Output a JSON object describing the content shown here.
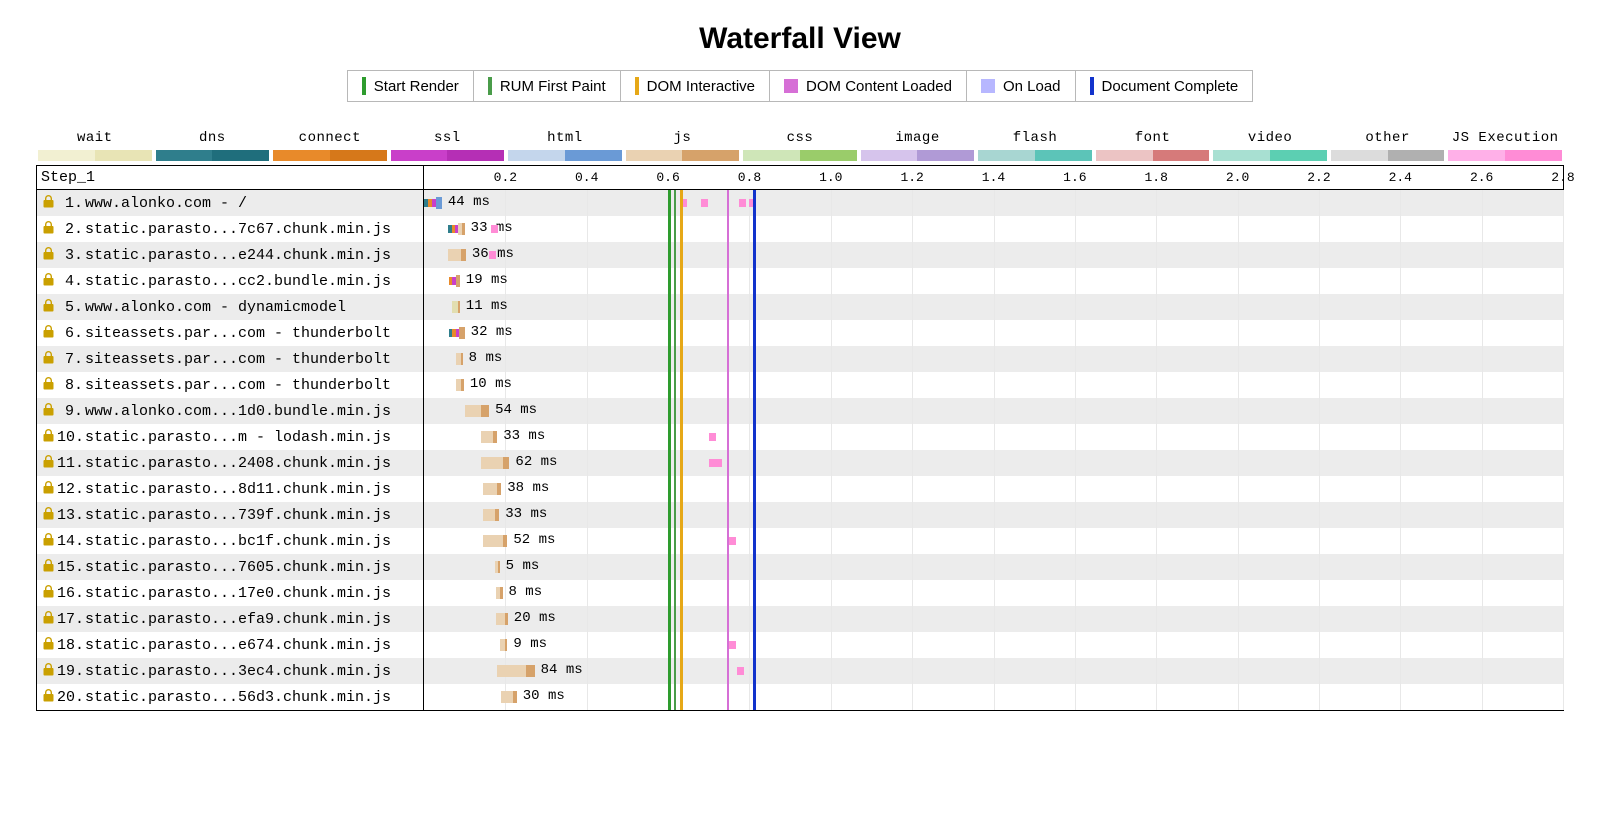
{
  "title": "Waterfall View",
  "markers": [
    {
      "label": "Start Render",
      "style": "line",
      "color": "#2e9c2e"
    },
    {
      "label": "RUM First Paint",
      "style": "line",
      "color": "#4a9c4a"
    },
    {
      "label": "DOM Interactive",
      "style": "line",
      "color": "#e6a817"
    },
    {
      "label": "DOM Content Loaded",
      "style": "box",
      "color": "#d66fd6"
    },
    {
      "label": "On Load",
      "style": "box",
      "color": "#b7b7ff"
    },
    {
      "label": "Document Complete",
      "style": "line",
      "color": "#1233cc"
    }
  ],
  "phases": [
    {
      "label": "wait",
      "light": "#f2f0d2",
      "dark": "#e8e4b5"
    },
    {
      "label": "dns",
      "light": "#2f7e8c",
      "dark": "#1f6e7c"
    },
    {
      "label": "connect",
      "light": "#e88a2a",
      "dark": "#d6781a"
    },
    {
      "label": "ssl",
      "light": "#c93fc9",
      "dark": "#b52fb5"
    },
    {
      "label": "html",
      "light": "#c4d6ec",
      "dark": "#6a9ad6"
    },
    {
      "label": "js",
      "light": "#ead2b2",
      "dark": "#d6a26a"
    },
    {
      "label": "css",
      "light": "#cfe6b8",
      "dark": "#9acc6a"
    },
    {
      "label": "image",
      "light": "#d6c4ec",
      "dark": "#b09ad6"
    },
    {
      "label": "flash",
      "light": "#a8d6d2",
      "dark": "#5cc4b8"
    },
    {
      "label": "font",
      "light": "#ecc4c4",
      "dark": "#d67a7a"
    },
    {
      "label": "video",
      "light": "#a8e0d2",
      "dark": "#5ccfb2"
    },
    {
      "label": "other",
      "light": "#dcdcdc",
      "dark": "#b0b0b0"
    },
    {
      "label": "JS Execution",
      "light": "#ffb0e8",
      "dark": "#ff8cd6"
    }
  ],
  "step_label": "Step_1",
  "timeline": {
    "min": 0.0,
    "max": 2.8,
    "tick_step": 0.2,
    "label_start": 0.2,
    "dominant_color": "#cfcfcf",
    "minor_color": "#e8e8e8"
  },
  "marker_lines": [
    {
      "time": 0.6,
      "color": "#2e9c2e",
      "width": 3
    },
    {
      "time": 0.615,
      "color": "#4a9c4a",
      "width": 2
    },
    {
      "time": 0.63,
      "color": "#e6a817",
      "width": 3
    },
    {
      "time": 0.745,
      "color": "#d66fd6",
      "width": 2
    },
    {
      "time": 0.81,
      "color": "#1233cc",
      "width": 3
    }
  ],
  "colors": {
    "wait_light": "#f2f0d2",
    "wait_dark": "#e2deb0",
    "dns": "#2f7e8c",
    "connect": "#e88a2a",
    "ssl": "#c93fc9",
    "html_light": "#c4d6ec",
    "html_dark": "#6a9ad6",
    "js_light": "#ead2b2",
    "js_dark": "#d6a26a",
    "exec": "#ff8cd6"
  },
  "requests": [
    {
      "n": 1,
      "url": "www.alonko.com - /",
      "ms": 44,
      "lock": true,
      "segments": [
        {
          "from": 0.0,
          "to": 0.01,
          "color": "#2f7e8c",
          "shape": "thin"
        },
        {
          "from": 0.01,
          "to": 0.02,
          "color": "#e88a2a",
          "shape": "thin"
        },
        {
          "from": 0.02,
          "to": 0.03,
          "color": "#c93fc9",
          "shape": "thin"
        },
        {
          "from": 0.03,
          "to": 0.044,
          "color": "#6a9ad6"
        }
      ],
      "exec_ticks": [
        0.63,
        0.68,
        0.775,
        0.8
      ]
    },
    {
      "n": 2,
      "url": "static.parasto...7c67.chunk.min.js",
      "ms": 33,
      "lock": true,
      "segments": [
        {
          "from": 0.06,
          "to": 0.068,
          "color": "#2f7e8c",
          "shape": "thin"
        },
        {
          "from": 0.068,
          "to": 0.076,
          "color": "#e88a2a",
          "shape": "thin"
        },
        {
          "from": 0.076,
          "to": 0.084,
          "color": "#c93fc9",
          "shape": "thin"
        },
        {
          "from": 0.084,
          "to": 0.093,
          "color": "#ead2b2"
        },
        {
          "from": 0.093,
          "to": 0.1,
          "color": "#d6a26a"
        }
      ],
      "exec_ticks": [
        0.165
      ]
    },
    {
      "n": 3,
      "url": "static.parasto...e244.chunk.min.js",
      "ms": 36,
      "lock": true,
      "segments": [
        {
          "from": 0.06,
          "to": 0.09,
          "color": "#ead2b2"
        },
        {
          "from": 0.09,
          "to": 0.103,
          "color": "#d6a26a"
        }
      ],
      "exec_ticks": [
        0.16
      ]
    },
    {
      "n": 4,
      "url": "static.parasto...cc2.bundle.min.js",
      "ms": 19,
      "lock": true,
      "segments": [
        {
          "from": 0.062,
          "to": 0.07,
          "color": "#e88a2a",
          "shape": "thin"
        },
        {
          "from": 0.07,
          "to": 0.078,
          "color": "#c93fc9",
          "shape": "thin"
        },
        {
          "from": 0.078,
          "to": 0.088,
          "color": "#d6a26a"
        }
      ]
    },
    {
      "n": 5,
      "url": "www.alonko.com - dynamicmodel",
      "ms": 11,
      "lock": true,
      "segments": [
        {
          "from": 0.07,
          "to": 0.083,
          "color": "#e2deb0"
        },
        {
          "from": 0.083,
          "to": 0.088,
          "color": "#d6a26a"
        }
      ]
    },
    {
      "n": 6,
      "url": "siteassets.par...com - thunderbolt",
      "ms": 32,
      "lock": true,
      "segments": [
        {
          "from": 0.062,
          "to": 0.07,
          "color": "#2f7e8c",
          "shape": "thin"
        },
        {
          "from": 0.07,
          "to": 0.078,
          "color": "#e88a2a",
          "shape": "thin"
        },
        {
          "from": 0.078,
          "to": 0.086,
          "color": "#c93fc9",
          "shape": "thin"
        },
        {
          "from": 0.086,
          "to": 0.1,
          "color": "#d6a26a"
        }
      ]
    },
    {
      "n": 7,
      "url": "siteassets.par...com - thunderbolt",
      "ms": 8,
      "lock": true,
      "segments": [
        {
          "from": 0.078,
          "to": 0.09,
          "color": "#ead2b2"
        },
        {
          "from": 0.09,
          "to": 0.095,
          "color": "#d6a26a"
        }
      ]
    },
    {
      "n": 8,
      "url": "siteassets.par...com - thunderbolt",
      "ms": 10,
      "lock": true,
      "segments": [
        {
          "from": 0.078,
          "to": 0.092,
          "color": "#ead2b2"
        },
        {
          "from": 0.092,
          "to": 0.098,
          "color": "#d6a26a"
        }
      ]
    },
    {
      "n": 9,
      "url": "www.alonko.com...1d0.bundle.min.js",
      "ms": 54,
      "lock": true,
      "segments": [
        {
          "from": 0.1,
          "to": 0.14,
          "color": "#ead2b2"
        },
        {
          "from": 0.14,
          "to": 0.16,
          "color": "#d6a26a"
        }
      ]
    },
    {
      "n": 10,
      "url": "static.parasto...m - lodash.min.js",
      "ms": 33,
      "lock": true,
      "segments": [
        {
          "from": 0.14,
          "to": 0.17,
          "color": "#ead2b2"
        },
        {
          "from": 0.17,
          "to": 0.18,
          "color": "#d6a26a"
        }
      ],
      "exec_ticks": [
        0.7
      ]
    },
    {
      "n": 11,
      "url": "static.parasto...2408.chunk.min.js",
      "ms": 62,
      "lock": true,
      "segments": [
        {
          "from": 0.14,
          "to": 0.195,
          "color": "#ead2b2"
        },
        {
          "from": 0.195,
          "to": 0.21,
          "color": "#d6a26a"
        }
      ],
      "exec_ticks": [
        0.7,
        0.715
      ]
    },
    {
      "n": 12,
      "url": "static.parasto...8d11.chunk.min.js",
      "ms": 38,
      "lock": true,
      "segments": [
        {
          "from": 0.145,
          "to": 0.18,
          "color": "#ead2b2"
        },
        {
          "from": 0.18,
          "to": 0.19,
          "color": "#d6a26a"
        }
      ]
    },
    {
      "n": 13,
      "url": "static.parasto...739f.chunk.min.js",
      "ms": 33,
      "lock": true,
      "segments": [
        {
          "from": 0.145,
          "to": 0.175,
          "color": "#ead2b2"
        },
        {
          "from": 0.175,
          "to": 0.185,
          "color": "#d6a26a"
        }
      ]
    },
    {
      "n": 14,
      "url": "static.parasto...bc1f.chunk.min.js",
      "ms": 52,
      "lock": true,
      "segments": [
        {
          "from": 0.145,
          "to": 0.195,
          "color": "#ead2b2"
        },
        {
          "from": 0.195,
          "to": 0.205,
          "color": "#d6a26a"
        }
      ],
      "exec_ticks": [
        0.75
      ]
    },
    {
      "n": 15,
      "url": "static.parasto...7605.chunk.min.js",
      "ms": 5,
      "lock": true,
      "segments": [
        {
          "from": 0.175,
          "to": 0.182,
          "color": "#ead2b2"
        },
        {
          "from": 0.182,
          "to": 0.186,
          "color": "#d6a26a"
        }
      ]
    },
    {
      "n": 16,
      "url": "static.parasto...17e0.chunk.min.js",
      "ms": 8,
      "lock": true,
      "segments": [
        {
          "from": 0.178,
          "to": 0.188,
          "color": "#ead2b2"
        },
        {
          "from": 0.188,
          "to": 0.193,
          "color": "#d6a26a"
        }
      ]
    },
    {
      "n": 17,
      "url": "static.parasto...efa9.chunk.min.js",
      "ms": 20,
      "lock": true,
      "segments": [
        {
          "from": 0.178,
          "to": 0.2,
          "color": "#ead2b2"
        },
        {
          "from": 0.2,
          "to": 0.206,
          "color": "#d6a26a"
        }
      ]
    },
    {
      "n": 18,
      "url": "static.parasto...e674.chunk.min.js",
      "ms": 9,
      "lock": true,
      "segments": [
        {
          "from": 0.188,
          "to": 0.2,
          "color": "#ead2b2"
        },
        {
          "from": 0.2,
          "to": 0.205,
          "color": "#d6a26a"
        }
      ],
      "exec_ticks": [
        0.75
      ]
    },
    {
      "n": 19,
      "url": "static.parasto...3ec4.chunk.min.js",
      "ms": 84,
      "lock": true,
      "segments": [
        {
          "from": 0.18,
          "to": 0.25,
          "color": "#ead2b2"
        },
        {
          "from": 0.25,
          "to": 0.272,
          "color": "#d6a26a"
        }
      ],
      "exec_ticks": [
        0.77
      ]
    },
    {
      "n": 20,
      "url": "static.parasto...56d3.chunk.min.js",
      "ms": 30,
      "lock": true,
      "segments": [
        {
          "from": 0.19,
          "to": 0.22,
          "color": "#ead2b2"
        },
        {
          "from": 0.22,
          "to": 0.228,
          "color": "#d6a26a"
        }
      ]
    }
  ]
}
